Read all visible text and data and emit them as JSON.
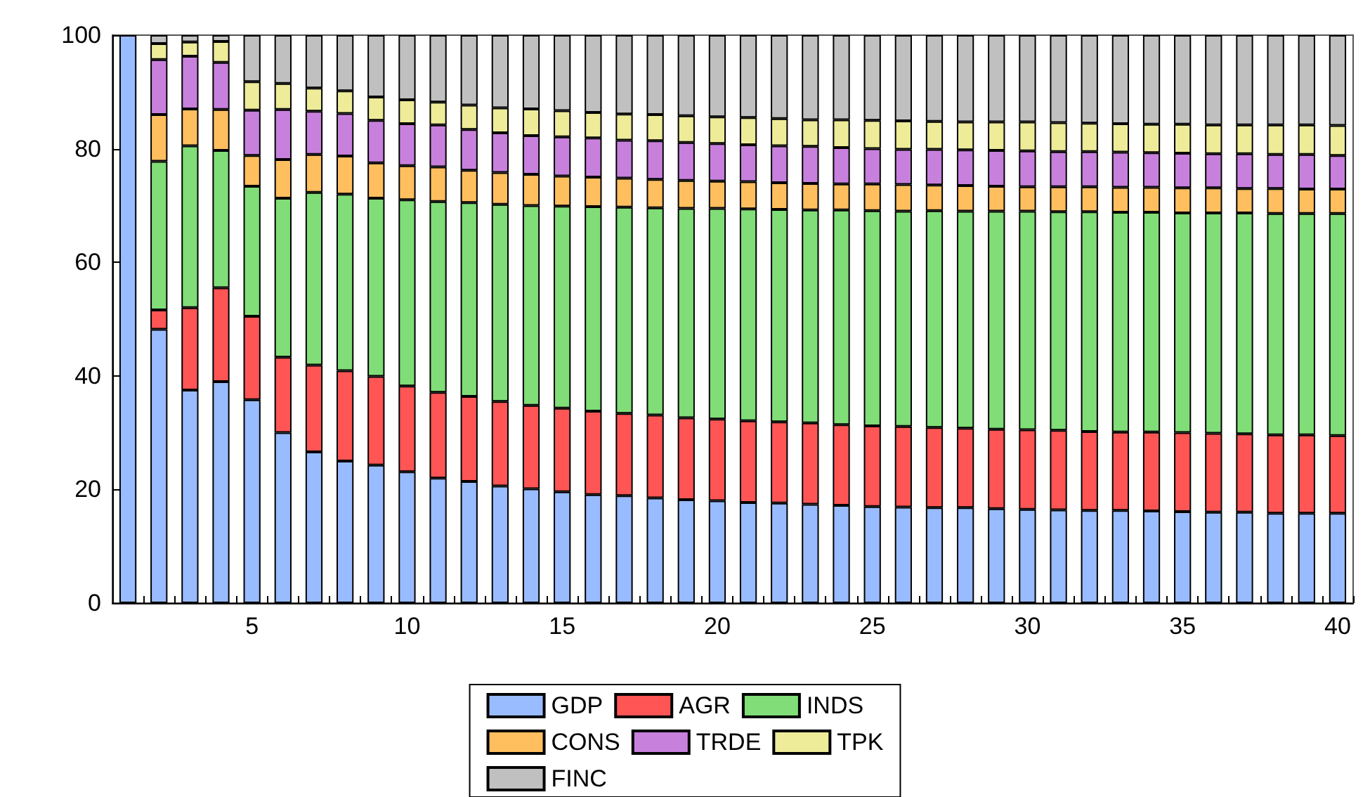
{
  "chart_data": {
    "type": "bar",
    "stacked": true,
    "categories": [
      null,
      null,
      null,
      null,
      "5",
      null,
      null,
      null,
      null,
      "10",
      null,
      null,
      null,
      null,
      "15",
      null,
      null,
      null,
      null,
      "20",
      null,
      null,
      null,
      null,
      "25",
      null,
      null,
      null,
      null,
      "30",
      null,
      null,
      null,
      null,
      "35",
      null,
      null,
      null,
      null,
      "40"
    ],
    "ylim": [
      0,
      100
    ],
    "yticks": [
      0,
      20,
      40,
      60,
      80,
      100
    ],
    "grid": false,
    "legend": "bottom",
    "series": [
      {
        "name": "GDP",
        "color": "#99bbff",
        "values": [
          100,
          48.2,
          37.5,
          39,
          35.8,
          30,
          26.6,
          25,
          24.3,
          23.1,
          22,
          21.4,
          20.6,
          20.1,
          19.6,
          19.1,
          18.9,
          18.5,
          18.2,
          18.0,
          17.7,
          17.6,
          17.4,
          17.2,
          17.0,
          16.9,
          16.8,
          16.8,
          16.6,
          16.5,
          16.4,
          16.3,
          16.3,
          16.2,
          16.1,
          16.0,
          16.0,
          15.8,
          15.8,
          15.8
        ]
      },
      {
        "name": "AGR",
        "color": "#ff5555",
        "values": [
          0,
          3.4,
          14.5,
          16.5,
          14.7,
          13.3,
          15.3,
          15.9,
          15.6,
          15.1,
          15.1,
          15,
          14.9,
          14.7,
          14.7,
          14.7,
          14.5,
          14.6,
          14.4,
          14.4,
          14.4,
          14.3,
          14.3,
          14.2,
          14.2,
          14.2,
          14.1,
          14.0,
          14.0,
          14.0,
          14.0,
          13.9,
          13.8,
          13.9,
          13.9,
          13.9,
          13.8,
          13.8,
          13.8,
          13.7
        ]
      },
      {
        "name": "INDS",
        "color": "#80dd77",
        "values": [
          0,
          26.2,
          28.5,
          24.2,
          22.9,
          28,
          30.4,
          31.1,
          31.4,
          32.8,
          33.6,
          34.1,
          34.7,
          35.2,
          35.6,
          36.0,
          36.3,
          36.5,
          36.9,
          37.1,
          37.3,
          37.4,
          37.5,
          37.8,
          37.9,
          37.9,
          38.2,
          38.2,
          38.4,
          38.5,
          38.5,
          38.7,
          38.7,
          38.7,
          38.7,
          38.8,
          38.9,
          39.0,
          39.0,
          39.1
        ]
      },
      {
        "name": "CONS",
        "color": "#ffbf5f",
        "values": [
          0,
          8.2,
          6.5,
          7.2,
          5.4,
          6.8,
          6.7,
          6.7,
          6.2,
          6,
          6.1,
          5.7,
          5.6,
          5.5,
          5.3,
          5.2,
          5.1,
          5.0,
          4.9,
          4.8,
          4.8,
          4.7,
          4.7,
          4.6,
          4.7,
          4.7,
          4.5,
          4.5,
          4.4,
          4.3,
          4.4,
          4.4,
          4.4,
          4.4,
          4.4,
          4.4,
          4.3,
          4.4,
          4.3,
          4.3
        ]
      },
      {
        "name": "TRDE",
        "color": "#c880dd",
        "values": [
          0,
          9.7,
          9.3,
          8.3,
          8.0,
          8.8,
          7.6,
          7.5,
          7.5,
          7.4,
          7.4,
          7.2,
          7.0,
          6.8,
          6.9,
          6.9,
          6.7,
          6.8,
          6.7,
          6.6,
          6.5,
          6.5,
          6.5,
          6.4,
          6.2,
          6.2,
          6.3,
          6.3,
          6.3,
          6.3,
          6.2,
          6.2,
          6.2,
          6.1,
          6.1,
          6.0,
          6.1,
          6.0,
          6.1,
          5.9
        ]
      },
      {
        "name": "TPK",
        "color": "#eeeb99",
        "values": [
          0,
          2.8,
          2.5,
          3.7,
          5.0,
          4.6,
          4.1,
          4.0,
          4.1,
          4.2,
          4.0,
          4.3,
          4.4,
          4.7,
          4.6,
          4.5,
          4.6,
          4.6,
          4.7,
          4.7,
          4.8,
          4.8,
          4.7,
          4.9,
          5.0,
          5.0,
          4.9,
          4.9,
          5.0,
          5.1,
          5.1,
          5.0,
          5.0,
          5.0,
          5.1,
          5.1,
          5.1,
          5.2,
          5.2,
          5.3
        ]
      },
      {
        "name": "FINC",
        "color": "#c0c0c0",
        "values": [
          0,
          1.5,
          1.2,
          1.1,
          8.2,
          8.5,
          9.3,
          9.8,
          10.9,
          11.4,
          11.8,
          12.3,
          12.8,
          13.0,
          13.3,
          13.6,
          13.9,
          14.0,
          14.2,
          14.4,
          14.5,
          14.7,
          14.9,
          14.9,
          15.0,
          15.1,
          15.2,
          15.3,
          15.3,
          15.3,
          15.4,
          15.5,
          15.6,
          15.7,
          15.7,
          15.8,
          15.8,
          15.8,
          15.8,
          15.9
        ]
      }
    ]
  }
}
